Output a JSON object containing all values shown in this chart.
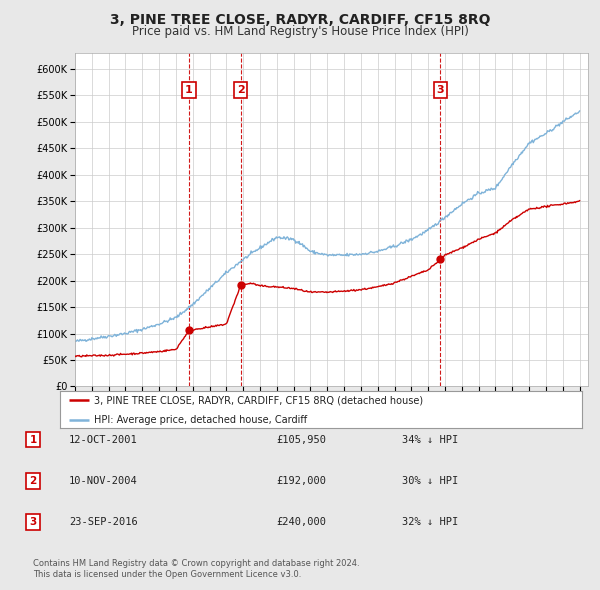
{
  "title": "3, PINE TREE CLOSE, RADYR, CARDIFF, CF15 8RQ",
  "subtitle": "Price paid vs. HM Land Registry's House Price Index (HPI)",
  "title_fontsize": 10,
  "subtitle_fontsize": 8.5,
  "ylabel_ticks": [
    "£0",
    "£50K",
    "£100K",
    "£150K",
    "£200K",
    "£250K",
    "£300K",
    "£350K",
    "£400K",
    "£450K",
    "£500K",
    "£550K",
    "£600K"
  ],
  "ytick_values": [
    0,
    50000,
    100000,
    150000,
    200000,
    250000,
    300000,
    350000,
    400000,
    450000,
    500000,
    550000,
    600000
  ],
  "ylim": [
    0,
    630000
  ],
  "xlim_start": 1995.0,
  "xlim_end": 2025.5,
  "sale_color": "#cc0000",
  "hpi_color": "#7fb3d9",
  "bg_color": "#e8e8e8",
  "plot_bg_color": "#ffffff",
  "grid_color": "#cccccc",
  "sale_points": [
    {
      "year": 2001.78,
      "price": 105950,
      "label": "1"
    },
    {
      "year": 2004.86,
      "price": 192000,
      "label": "2"
    },
    {
      "year": 2016.73,
      "price": 240000,
      "label": "3"
    }
  ],
  "vline_color": "#cc0000",
  "vline_style": "--",
  "table_data": [
    {
      "num": "1",
      "date": "12-OCT-2001",
      "price": "£105,950",
      "hpi": "34% ↓ HPI"
    },
    {
      "num": "2",
      "date": "10-NOV-2004",
      "price": "£192,000",
      "hpi": "30% ↓ HPI"
    },
    {
      "num": "3",
      "date": "23-SEP-2016",
      "price": "£240,000",
      "hpi": "32% ↓ HPI"
    }
  ],
  "legend_line1": "3, PINE TREE CLOSE, RADYR, CARDIFF, CF15 8RQ (detached house)",
  "legend_line2": "HPI: Average price, detached house, Cardiff",
  "footer": "Contains HM Land Registry data © Crown copyright and database right 2024.\nThis data is licensed under the Open Government Licence v3.0.",
  "xticks": [
    1995,
    1996,
    1997,
    1998,
    1999,
    2000,
    2001,
    2002,
    2003,
    2004,
    2005,
    2006,
    2007,
    2008,
    2009,
    2010,
    2011,
    2012,
    2013,
    2014,
    2015,
    2016,
    2017,
    2018,
    2019,
    2020,
    2021,
    2022,
    2023,
    2024,
    2025
  ]
}
